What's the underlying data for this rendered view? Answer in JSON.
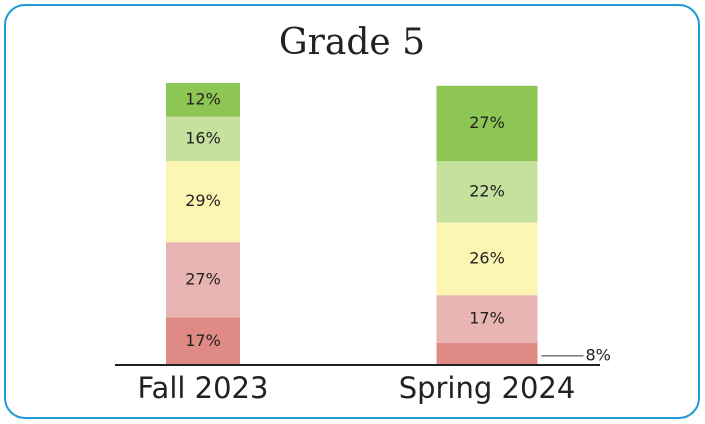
{
  "chart_data": {
    "type": "stacked_bar",
    "title": "Grade 5",
    "categories": [
      "Fall 2023",
      "Spring 2024"
    ],
    "series": [
      {
        "color": "#e08a86",
        "values": [
          17,
          8
        ],
        "value_labels": [
          "17%",
          "8%"
        ]
      },
      {
        "color": "#e8b5b3",
        "values": [
          27,
          17
        ],
        "value_labels": [
          "27%",
          "17%"
        ]
      },
      {
        "color": "#fdf6b2",
        "values": [
          29,
          26
        ],
        "value_labels": [
          "29%",
          "26%"
        ]
      },
      {
        "color": "#c6e09d",
        "values": [
          16,
          22
        ],
        "value_labels": [
          "16%",
          "22%"
        ]
      },
      {
        "color": "#8dc655",
        "values": [
          12,
          27
        ],
        "value_labels": [
          "12%",
          "27%"
        ]
      }
    ]
  }
}
